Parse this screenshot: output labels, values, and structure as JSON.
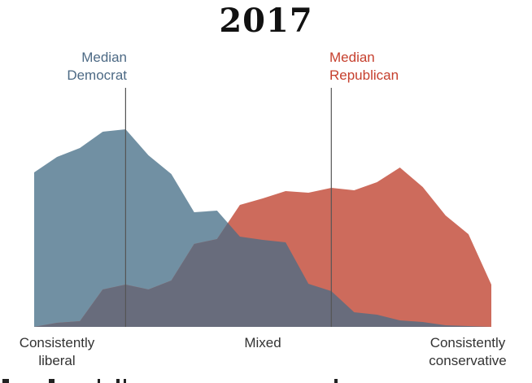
{
  "chart_data": {
    "type": "area",
    "title": "2017",
    "xlabel": "",
    "ylabel": "",
    "x": [
      0,
      1,
      2,
      3,
      4,
      5,
      6,
      7,
      8,
      9,
      10,
      11,
      12,
      13,
      14,
      15,
      16,
      17,
      18,
      19,
      20
    ],
    "xlim": [
      0,
      20
    ],
    "ylim": [
      0,
      125
    ],
    "x_tick_labels": [
      {
        "x": 0,
        "lines": [
          "Consistently",
          "liberal"
        ]
      },
      {
        "x": 10,
        "lines": [
          "Mixed"
        ]
      },
      {
        "x": 20,
        "lines": [
          "Consistently",
          "conservative"
        ]
      }
    ],
    "series": [
      {
        "name": "Democrat",
        "color": "#7190a3",
        "values": [
          95,
          104.5,
          110,
          120,
          121.5,
          105.5,
          94,
          70.5,
          71.5,
          55.5,
          53.5,
          52,
          26.5,
          22,
          9,
          7.5,
          4,
          3,
          1,
          0.5,
          0
        ]
      },
      {
        "name": "Republican",
        "color": "#cd6b5c",
        "values": [
          0,
          2.5,
          3.5,
          23,
          26,
          23,
          28.5,
          51,
          54,
          75,
          79,
          83.5,
          82.5,
          85.5,
          84,
          89,
          98,
          86,
          68.5,
          57,
          26
        ]
      }
    ],
    "overlap_color": "#686c7c",
    "annotations": [
      {
        "text_lines": [
          "Median",
          "Democrat"
        ],
        "x": 4,
        "color": "#4d6a85"
      },
      {
        "text_lines": [
          "Median",
          "Republican"
        ],
        "x": 13,
        "color": "#c6402e"
      }
    ],
    "grid": false,
    "legend": "none"
  },
  "labels": {
    "title": "2017",
    "median_dem_1": "Median",
    "median_dem_2": "Democrat",
    "median_rep_1": "Median",
    "median_rep_2": "Republican",
    "axis_left_1": "Consistently",
    "axis_left_2": "liberal",
    "axis_mid": "Mixed",
    "axis_right_1": "Consistently",
    "axis_right_2": "conservative"
  }
}
